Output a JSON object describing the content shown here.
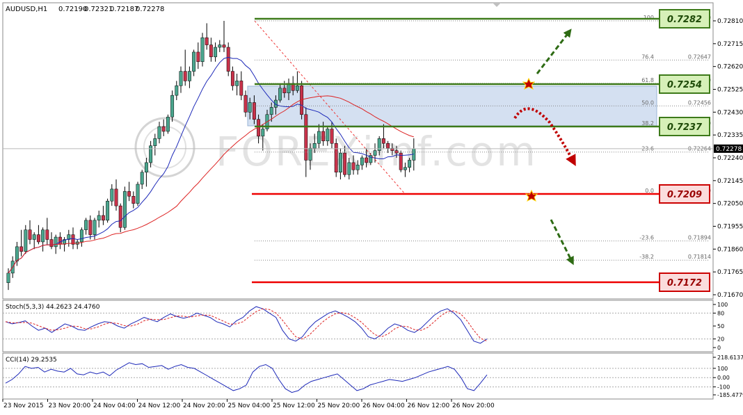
{
  "chart_data": {
    "type": "candlestick",
    "symbol": "AUDUSD,H1",
    "ohlc_header": [
      "0.72190",
      "0.72321",
      "0.72187",
      "0.72278"
    ],
    "price_axis": {
      "range": [
        0.71628,
        0.7287
      ],
      "ticks": [
        "0.72810",
        "0.72715",
        "0.72620",
        "0.72525",
        "0.72430",
        "0.72335",
        "0.72240",
        "0.72145",
        "0.72050",
        "0.71955",
        "0.71860",
        "0.71765",
        "0.71670"
      ],
      "current_price": "0.72278"
    },
    "time_axis_labels": [
      "23 Nov 2015",
      "23 Nov 20:00",
      "24 Nov 04:00",
      "24 Nov 12:00",
      "24 Nov 20:00",
      "25 Nov 04:00",
      "25 Nov 12:00",
      "25 Nov 20:00",
      "26 Nov 04:00",
      "26 Nov 12:00",
      "26 Nov 20:00"
    ],
    "fibonacci": [
      {
        "level": "100",
        "price": "0.72810"
      },
      {
        "level": "76.4",
        "price": "0.72647"
      },
      {
        "level": "61.8",
        "price": "0.72550"
      },
      {
        "level": "50.0",
        "price": "0.72456"
      },
      {
        "level": "38.2",
        "price": "0.72370"
      },
      {
        "level": "23.6",
        "price": "0.72264"
      },
      {
        "level": "0.0",
        "price": "0.72090"
      },
      {
        "level": "-23.6",
        "price": "0.71894"
      },
      {
        "level": "-38.2",
        "price": "0.71814"
      }
    ],
    "resistance_levels": [
      "0.7282",
      "0.7254",
      "0.7237"
    ],
    "support_levels": [
      "0.7209",
      "0.7172"
    ],
    "stochastic": {
      "label": "Stoch(5,3,3) 44.2623 24.4760",
      "axis_ticks": [
        "100",
        "80",
        "50",
        "20",
        "0"
      ]
    },
    "cci": {
      "label": "CCI(14) 29.2535",
      "axis_ticks": [
        "218.6137",
        "100",
        "0.00",
        "-100",
        "-185.4779"
      ]
    },
    "watermark": "FOREXimf.com"
  }
}
